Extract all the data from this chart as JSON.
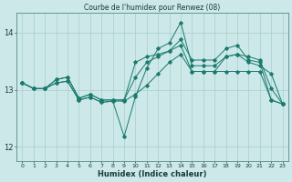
{
  "title": "Courbe de l'humidex pour Renwez (08)",
  "xlabel": "Humidex (Indice chaleur)",
  "bg_color": "#cce8e8",
  "line_color": "#1a7a6e",
  "grid_color": "#aacece",
  "xlim": [
    -0.5,
    23.5
  ],
  "ylim": [
    11.75,
    14.35
  ],
  "yticks": [
    12,
    13,
    14
  ],
  "xticks": [
    0,
    1,
    2,
    3,
    4,
    5,
    6,
    7,
    8,
    9,
    10,
    11,
    12,
    13,
    14,
    15,
    16,
    17,
    18,
    19,
    20,
    21,
    22,
    23
  ],
  "lines": [
    [
      13.12,
      13.02,
      13.02,
      13.12,
      13.15,
      12.82,
      12.87,
      12.78,
      12.8,
      12.8,
      12.92,
      13.08,
      13.28,
      13.48,
      13.62,
      13.32,
      13.32,
      13.32,
      13.32,
      13.32,
      13.32,
      13.32,
      12.82,
      12.75
    ],
    [
      13.12,
      13.02,
      13.02,
      13.12,
      13.15,
      12.82,
      12.87,
      12.78,
      12.8,
      12.18,
      12.88,
      13.38,
      13.72,
      13.82,
      14.18,
      13.42,
      13.42,
      13.42,
      13.58,
      13.62,
      13.58,
      13.52,
      13.02,
      12.75
    ],
    [
      13.12,
      13.02,
      13.02,
      13.18,
      13.22,
      12.85,
      12.92,
      12.82,
      12.82,
      12.82,
      13.22,
      13.48,
      13.58,
      13.68,
      13.78,
      13.32,
      13.32,
      13.32,
      13.58,
      13.62,
      13.48,
      13.42,
      13.28,
      12.75
    ],
    [
      13.12,
      13.02,
      13.02,
      13.18,
      13.22,
      12.85,
      12.92,
      12.82,
      12.82,
      12.82,
      13.48,
      13.58,
      13.62,
      13.68,
      13.88,
      13.52,
      13.52,
      13.52,
      13.72,
      13.78,
      13.52,
      13.48,
      12.82,
      12.75
    ]
  ]
}
